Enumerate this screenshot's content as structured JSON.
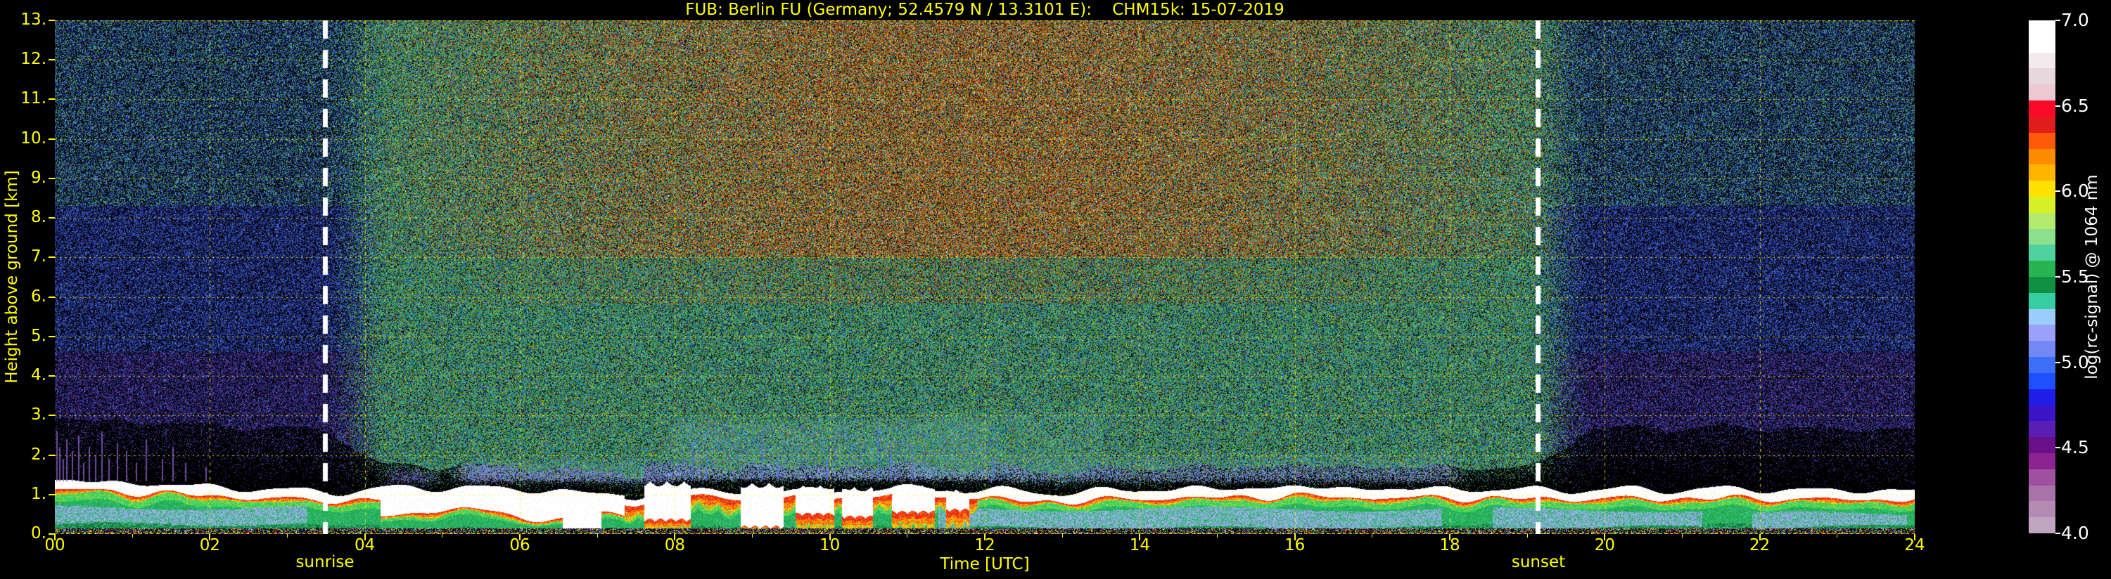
{
  "chart_data": {
    "type": "heatmap",
    "title": "FUB: Berlin FU (Germany; 52.4579 N / 13.3101 E):    CHM15k: 15-07-2019",
    "station": "FUB: Berlin FU",
    "country": "Germany",
    "coordinates": "52.4579 N / 13.3101 E",
    "instrument": "CHM15k",
    "date": "15-07-2019",
    "xlabel": "Time [UTC]",
    "ylabel": "Height above ground [km]",
    "xlim": [
      0,
      24
    ],
    "ylim": [
      0,
      13
    ],
    "grid": true,
    "x_ticks": [
      "00",
      "02",
      "04",
      "06",
      "08",
      "10",
      "12",
      "14",
      "16",
      "18",
      "20",
      "22",
      "24"
    ],
    "y_ticks": [
      "13.",
      "12.",
      "11.",
      "10.",
      "9.",
      "8.",
      "7.",
      "6.",
      "5.",
      "4.",
      "3.",
      "2.",
      "1.",
      "0."
    ],
    "annotations": {
      "sunrise": {
        "label": "sunrise",
        "hour": 3.49
      },
      "sunset": {
        "label": "sunset",
        "hour": 19.14
      }
    },
    "colorbar": {
      "label": "log(rc-signal) @ 1064 nm",
      "tick_labels": [
        "7.0",
        "6.5",
        "6.0",
        "5.5",
        "5.0",
        "4.5",
        "4.0"
      ],
      "range": [
        4.0,
        7.0
      ],
      "segments_top_to_bottom": [
        "#ffffff",
        "#ffffff",
        "#f3eaee",
        "#e7d8de",
        "#ecc8d2",
        "#fa0a28",
        "#e11e1e",
        "#ff5a0a",
        "#ff8c00",
        "#ffb400",
        "#ffe100",
        "#d7f028",
        "#b4eb6e",
        "#8ce08c",
        "#50d2a0",
        "#28b450",
        "#109141",
        "#37cda0",
        "#9bcdfa",
        "#9ba0fa",
        "#7387f5",
        "#3c6ef8",
        "#1e50ff",
        "#1e1ee6",
        "#3c14c8",
        "#5a1eb4",
        "#690f87",
        "#8c2390",
        "#a050a0",
        "#a873a8",
        "#b28ab2",
        "#bfa5bf"
      ]
    },
    "phenomena": {
      "description": "Stratus-topped boundary layer ~1 km deep persisting all day; white cloud band at BL top with red/orange/yellow signal fringe below, green aerosol layer with embedded pale periwinkle layers; broken low clouds 07:30-12:00 UTC with short virga/precip streaks; solar background noise (orange/red speckle aloft) between sunrise and sunset lines; blue-purple night-time noise.",
      "boundary_layer_top_km": [
        [
          0,
          1.18
        ],
        [
          1,
          1.14
        ],
        [
          2,
          1.1
        ],
        [
          3,
          1.0
        ],
        [
          3.6,
          0.95
        ],
        [
          5,
          0.92
        ],
        [
          6,
          0.9
        ],
        [
          6.5,
          0.88
        ],
        [
          7,
          0.82
        ],
        [
          7.5,
          0.85
        ],
        [
          8,
          1.05
        ],
        [
          9,
          0.95
        ],
        [
          10,
          0.95
        ],
        [
          11,
          1.0
        ],
        [
          12,
          1.0
        ],
        [
          13,
          0.95
        ],
        [
          14,
          1.0
        ],
        [
          15,
          0.97
        ],
        [
          16,
          1.02
        ],
        [
          17,
          1.02
        ],
        [
          18,
          1.05
        ],
        [
          19,
          1.0
        ],
        [
          20,
          0.95
        ],
        [
          21,
          0.95
        ],
        [
          22,
          1.0
        ],
        [
          23,
          1.0
        ],
        [
          24,
          1.0
        ]
      ],
      "cloud_intervals": [
        [
          6.55,
          7.05,
          0.06,
          0.8
        ],
        [
          7.6,
          8.2,
          0.3,
          1.32
        ],
        [
          8.85,
          9.4,
          0.12,
          1.28
        ],
        [
          9.55,
          10.05,
          0.45,
          1.22
        ],
        [
          10.15,
          10.55,
          0.38,
          1.18
        ],
        [
          10.8,
          11.35,
          0.5,
          1.22
        ],
        [
          11.5,
          11.8,
          0.55,
          1.12
        ]
      ],
      "lavender_layers": [
        [
          0,
          3.25,
          0.24,
          0.66
        ],
        [
          11.4,
          17.9,
          0.14,
          0.62
        ],
        [
          18.55,
          21.25,
          0.16,
          0.6
        ],
        [
          21.9,
          23.9,
          0.18,
          0.5
        ]
      ],
      "haze_patches": [
        [
          4.1,
          5.1,
          1.15,
          1.8,
          "#6e64c8",
          0.35
        ],
        [
          5.0,
          8.15,
          1.2,
          2.05,
          "#8c96e8",
          0.5
        ],
        [
          7.7,
          12.35,
          1.25,
          3.05,
          "#96aaf8",
          0.45
        ],
        [
          10.9,
          13.7,
          1.35,
          3.3,
          "#78b4d2",
          0.3
        ],
        [
          12.0,
          18.3,
          1.2,
          2.2,
          "#8c9bed",
          0.35
        ]
      ],
      "precip_streaks": [
        [
          8.22,
          2.3
        ],
        [
          8.4,
          2.05
        ],
        [
          9.12,
          2.6
        ],
        [
          9.33,
          2.1
        ],
        [
          9.95,
          1.9
        ],
        [
          10.62,
          2.9
        ],
        [
          10.78,
          2.3
        ],
        [
          11.06,
          2.2
        ],
        [
          12.1,
          1.95
        ]
      ],
      "night_streaks": [
        [
          0.02,
          2.6
        ],
        [
          0.06,
          2.2
        ],
        [
          0.1,
          1.9
        ],
        [
          0.15,
          2.4
        ],
        [
          0.22,
          2.1
        ],
        [
          0.3,
          2.5
        ],
        [
          0.37,
          1.8
        ],
        [
          0.44,
          2.2
        ],
        [
          0.52,
          2.0
        ],
        [
          0.6,
          2.6
        ],
        [
          0.69,
          1.9
        ],
        [
          0.8,
          2.3
        ],
        [
          0.92,
          2.1
        ],
        [
          1.05,
          1.8
        ],
        [
          1.18,
          2.4
        ],
        [
          1.38,
          1.9
        ],
        [
          1.52,
          2.2
        ],
        [
          1.68,
          1.8
        ],
        [
          1.95,
          1.7
        ]
      ]
    },
    "render": {
      "colors": {
        "axis_text": "#ffff00",
        "cb_text": "#ffffff",
        "grid": "#ffee00",
        "sun_line": "#ffffff",
        "streak": "#5a78e6",
        "night_streak": "#8c64cd",
        "background": "#000000"
      },
      "palettes": {
        "night_high": [
          "#3cc8a0",
          "#46d2c8",
          "#50b4e6",
          "#5ad764",
          "#2d8cd2",
          "#64e6b4",
          "#b4d73c"
        ],
        "night_mid": [
          "#2850e6",
          "#3c64f0",
          "#1e3cc8",
          "#5a78f0",
          "#2d2daa",
          "#4650dc",
          "#6ea0f5"
        ],
        "night_low": [
          "#5a3cb4",
          "#7846c8",
          "#4b28a0",
          "#8c50d2",
          "#3c1e8c",
          "#64329b"
        ],
        "day_low": [
          "#28b450",
          "#3cc87d",
          "#50d2a0",
          "#3296e6",
          "#46c8dc",
          "#69d746",
          "#d2e628",
          "#4664f0"
        ],
        "day_warm": [
          "#ff8c0a",
          "#e6501e",
          "#ffb41e",
          "#c8501e",
          "#ffdc32",
          "#ff6414",
          "#a04614",
          "#ff4628"
        ],
        "strip": [
          "#ff3c28",
          "#ffdc28",
          "#28c850",
          "#2864ff",
          "#f0f0f0",
          "#ff8c14",
          "#c828c8",
          "#32d2b4"
        ],
        "fringe": [
          "#e62814",
          "#ff7814",
          "#ffd700"
        ],
        "green_dark": [
          "#0f7d32",
          "#148c3c",
          "#117a46",
          "#0c6e28"
        ],
        "green_mid": [
          "#1ea04b",
          "#28b450",
          "#23aa5a",
          "#2dbe64"
        ],
        "green_bright": [
          "#32cd5f",
          "#46d76e",
          "#28c850",
          "#50e078"
        ],
        "teal_bl": [
          "#46c89b",
          "#37be8c",
          "#5ad2aa"
        ],
        "lavender": [
          "#9aa4f0",
          "#a8b2f5",
          "#8c96e6",
          "#b4bdfa"
        ]
      }
    }
  }
}
